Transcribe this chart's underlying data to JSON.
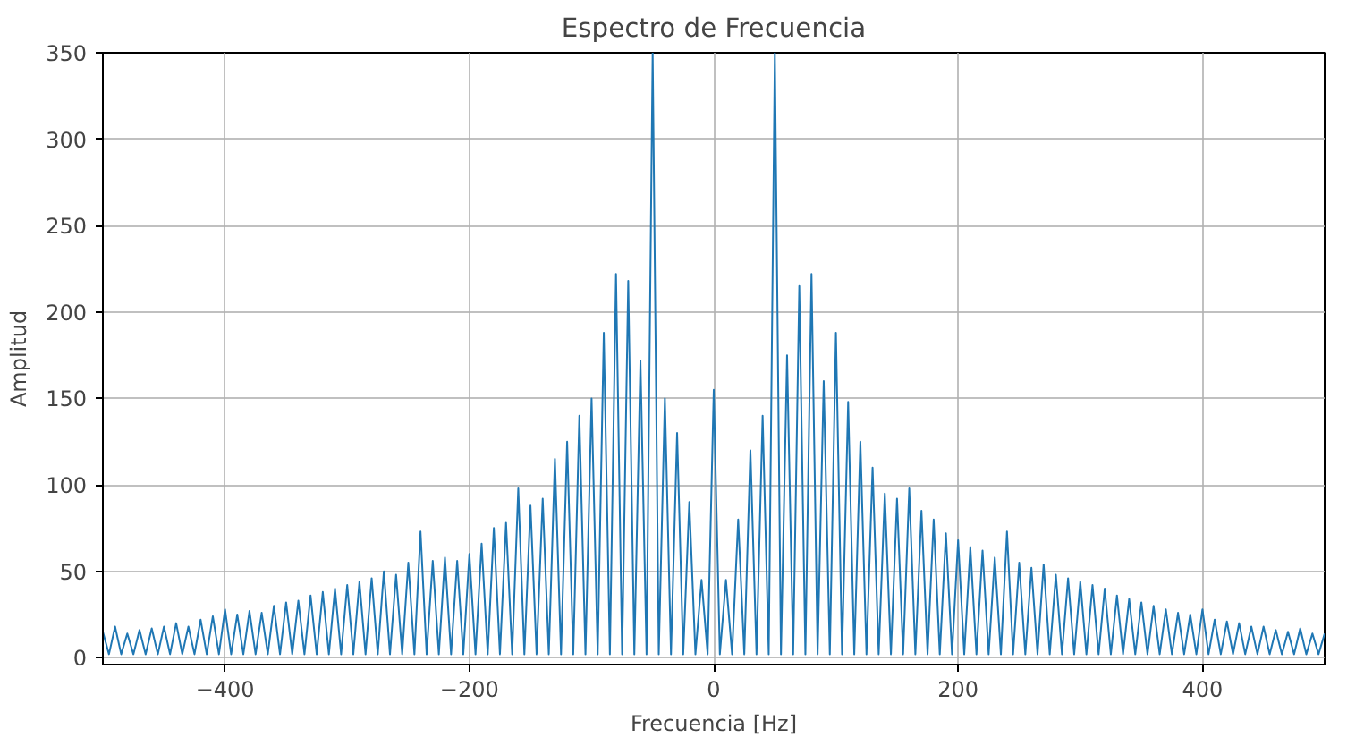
{
  "chart_data": {
    "type": "line",
    "title": "Espectro de Frecuencia",
    "xlabel": "Frecuencia [Hz]",
    "ylabel": "Amplitud",
    "xlim": [
      -500,
      500
    ],
    "ylim": [
      -4,
      350
    ],
    "xticks": [
      {
        "value": -400,
        "label": "−400"
      },
      {
        "value": -200,
        "label": "−200"
      },
      0,
      200,
      400
    ],
    "yticks": [
      0,
      50,
      100,
      150,
      200,
      250,
      300,
      350
    ],
    "grid": true,
    "line_style": "solid",
    "series": [
      {
        "color": "#1f77b4",
        "x": [
          -500,
          -495,
          -490,
          -485,
          -480,
          -475,
          -470,
          -465,
          -460,
          -455,
          -450,
          -445,
          -440,
          -435,
          -430,
          -425,
          -420,
          -415,
          -410,
          -405,
          -400,
          -395,
          -390,
          -385,
          -380,
          -375,
          -370,
          -365,
          -360,
          -355,
          -350,
          -345,
          -340,
          -335,
          -330,
          -325,
          -320,
          -315,
          -310,
          -305,
          -300,
          -295,
          -290,
          -285,
          -280,
          -275,
          -270,
          -265,
          -260,
          -255,
          -250,
          -245,
          -240,
          -235,
          -230,
          -225,
          -220,
          -215,
          -210,
          -205,
          -200,
          -195,
          -190,
          -185,
          -180,
          -175,
          -170,
          -165,
          -160,
          -155,
          -150,
          -145,
          -140,
          -135,
          -130,
          -125,
          -120,
          -115,
          -110,
          -105,
          -100,
          -95,
          -90,
          -85,
          -80,
          -75,
          -70,
          -65,
          -60,
          -55,
          -50,
          -45,
          -40,
          -35,
          -30,
          -25,
          -20,
          -15,
          -10,
          -5,
          0,
          5,
          10,
          15,
          20,
          25,
          30,
          35,
          40,
          45,
          50,
          55,
          60,
          65,
          70,
          75,
          80,
          85,
          90,
          95,
          100,
          105,
          110,
          115,
          120,
          125,
          130,
          135,
          140,
          145,
          150,
          155,
          160,
          165,
          170,
          175,
          180,
          185,
          190,
          195,
          200,
          205,
          210,
          215,
          220,
          225,
          230,
          235,
          240,
          245,
          250,
          255,
          260,
          265,
          270,
          275,
          280,
          285,
          290,
          295,
          300,
          305,
          310,
          315,
          320,
          325,
          330,
          335,
          340,
          345,
          350,
          355,
          360,
          365,
          370,
          375,
          380,
          385,
          390,
          395,
          400,
          405,
          410,
          415,
          420,
          425,
          430,
          435,
          440,
          445,
          450,
          455,
          460,
          465,
          470,
          475,
          480,
          485,
          490,
          495,
          500
        ],
        "values": [
          15,
          2,
          18,
          2,
          14,
          2,
          16,
          2,
          17,
          2,
          18,
          2,
          20,
          2,
          18,
          2,
          22,
          2,
          24,
          2,
          28,
          2,
          25,
          2,
          27,
          2,
          26,
          2,
          30,
          2,
          32,
          2,
          33,
          2,
          36,
          2,
          38,
          2,
          40,
          2,
          42,
          2,
          44,
          2,
          46,
          2,
          50,
          2,
          48,
          2,
          55,
          2,
          73,
          2,
          56,
          2,
          58,
          2,
          56,
          2,
          60,
          2,
          66,
          2,
          75,
          2,
          78,
          2,
          98,
          2,
          88,
          2,
          92,
          2,
          115,
          2,
          125,
          2,
          140,
          2,
          150,
          2,
          188,
          2,
          222,
          2,
          218,
          2,
          172,
          2,
          350,
          2,
          150,
          2,
          130,
          2,
          90,
          2,
          45,
          2,
          155,
          2,
          45,
          2,
          80,
          2,
          120,
          2,
          140,
          2,
          350,
          2,
          175,
          2,
          215,
          2,
          222,
          2,
          160,
          2,
          188,
          2,
          148,
          2,
          125,
          2,
          110,
          2,
          95,
          2,
          92,
          2,
          98,
          2,
          85,
          2,
          80,
          2,
          72,
          2,
          68,
          2,
          64,
          2,
          62,
          2,
          58,
          2,
          73,
          2,
          55,
          2,
          52,
          2,
          54,
          2,
          48,
          2,
          46,
          2,
          44,
          2,
          42,
          2,
          40,
          2,
          36,
          2,
          34,
          2,
          32,
          2,
          30,
          2,
          28,
          2,
          26,
          2,
          25,
          2,
          28,
          2,
          22,
          2,
          21,
          2,
          20,
          2,
          18,
          2,
          18,
          2,
          16,
          2,
          15,
          2,
          17,
          2,
          14,
          2,
          14
        ]
      }
    ]
  }
}
